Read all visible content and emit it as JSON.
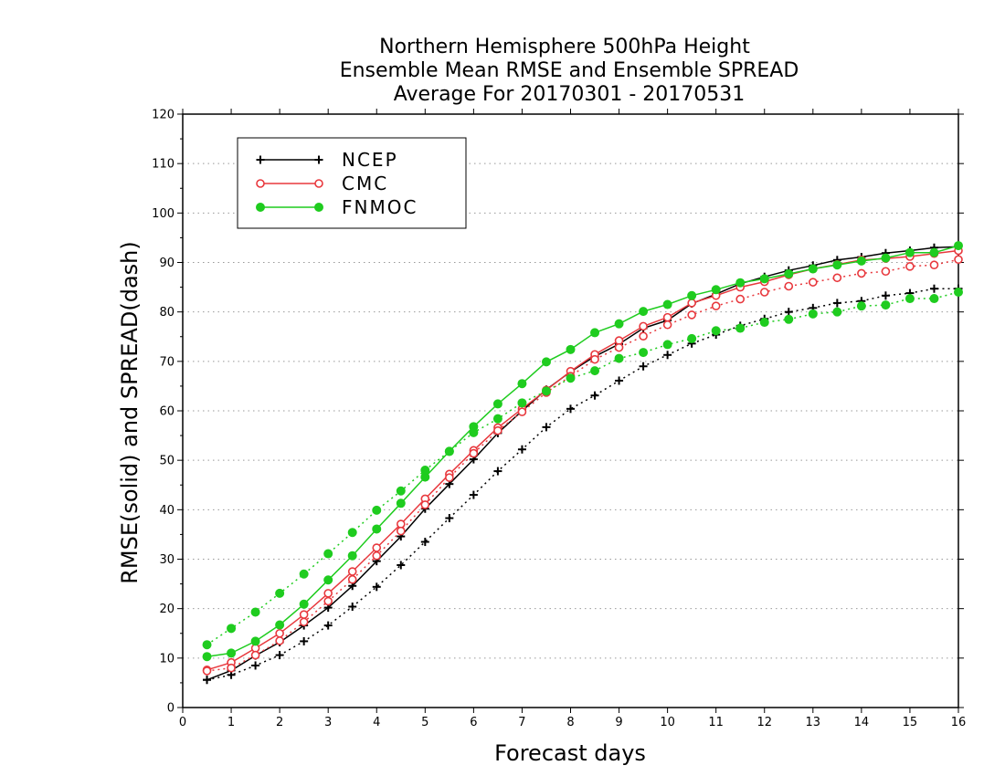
{
  "chart_data": {
    "type": "line",
    "title_lines": [
      "Northern Hemisphere 500hPa Height",
      "Ensemble Mean RMSE and Ensemble SPREAD",
      "Average For 20170301 - 20170531"
    ],
    "xlabel": "Forecast days",
    "ylabel": "RMSE(solid) and SPREAD(dash)",
    "xlim": [
      0,
      16
    ],
    "ylim": [
      0,
      120
    ],
    "x_ticks": [
      "0",
      "1",
      "2",
      "3",
      "4",
      "5",
      "6",
      "7",
      "8",
      "9",
      "10",
      "11",
      "12",
      "13",
      "14",
      "15",
      "16"
    ],
    "y_ticks": [
      "0",
      "10",
      "20",
      "30",
      "40",
      "50",
      "60",
      "70",
      "80",
      "90",
      "100",
      "110",
      "120"
    ],
    "grid": "dotted horizontal",
    "legend_position": "top-left",
    "x": [
      0.5,
      1,
      1.5,
      2,
      2.5,
      3,
      3.5,
      4,
      4.5,
      5,
      5.5,
      6,
      6.5,
      7,
      7.5,
      8,
      8.5,
      9,
      9.5,
      10,
      10.5,
      11,
      11.5,
      12,
      12.5,
      13,
      13.5,
      14,
      14.5,
      15,
      15.5,
      16
    ],
    "series": [
      {
        "name": "NCEP",
        "color": "#000000",
        "marker": "plus",
        "rmse": [
          5.6,
          7.5,
          10.5,
          13.2,
          16.6,
          20.2,
          24.6,
          29.6,
          34.6,
          40.2,
          45.2,
          50.2,
          55.5,
          60.0,
          64.3,
          67.9,
          71.0,
          73.5,
          76.7,
          78.3,
          81.7,
          83.6,
          85.7,
          87.1,
          88.4,
          89.4,
          90.5,
          91.1,
          91.9,
          92.4,
          93.0,
          93.2
        ],
        "spread": [
          5.6,
          6.6,
          8.5,
          10.6,
          13.4,
          16.6,
          20.4,
          24.4,
          28.8,
          33.5,
          38.3,
          43.0,
          47.8,
          52.2,
          56.7,
          60.4,
          63.1,
          66.1,
          69.0,
          71.3,
          73.6,
          75.4,
          77.2,
          78.6,
          80.0,
          80.8,
          81.8,
          82.2,
          83.3,
          83.8,
          84.7,
          84.7
        ]
      },
      {
        "name": "CMC",
        "color": "#e8383d",
        "marker": "open-circle",
        "rmse": [
          7.6,
          9.1,
          12.0,
          15.0,
          18.8,
          23.1,
          27.5,
          32.3,
          37.1,
          42.2,
          47.2,
          52.0,
          56.6,
          60.4,
          64.2,
          68.0,
          71.4,
          74.2,
          77.1,
          78.9,
          81.8,
          83.3,
          85.0,
          86.1,
          87.5,
          88.7,
          89.6,
          90.5,
          90.8,
          91.2,
          91.8,
          92.4
        ],
        "spread": [
          7.4,
          8.0,
          10.6,
          13.5,
          17.3,
          21.5,
          25.9,
          30.7,
          35.7,
          41.0,
          46.5,
          51.4,
          56.0,
          59.8,
          63.7,
          67.0,
          70.4,
          72.8,
          75.1,
          77.4,
          79.4,
          81.2,
          82.6,
          84.0,
          85.2,
          86.0,
          86.9,
          87.8,
          88.2,
          89.2,
          89.5,
          90.6
        ]
      },
      {
        "name": "FNMOC",
        "color": "#1fcc1f",
        "marker": "filled-circle",
        "rmse": [
          10.3,
          11.0,
          13.4,
          16.7,
          20.9,
          25.8,
          30.7,
          36.1,
          41.3,
          46.6,
          51.8,
          56.8,
          61.4,
          65.5,
          69.9,
          72.4,
          75.8,
          77.6,
          80.1,
          81.5,
          83.3,
          84.5,
          85.9,
          86.7,
          87.7,
          88.7,
          89.5,
          90.3,
          90.9,
          92.0,
          92.0,
          93.4
        ],
        "spread": [
          12.7,
          16.0,
          19.3,
          23.1,
          27.0,
          31.1,
          35.4,
          39.9,
          43.8,
          48.0,
          51.8,
          55.6,
          58.4,
          61.6,
          64.0,
          66.6,
          68.1,
          70.6,
          71.8,
          73.4,
          74.6,
          76.2,
          76.7,
          77.9,
          78.5,
          79.6,
          80.0,
          81.2,
          81.4,
          82.7,
          82.7,
          84.0
        ]
      }
    ]
  }
}
